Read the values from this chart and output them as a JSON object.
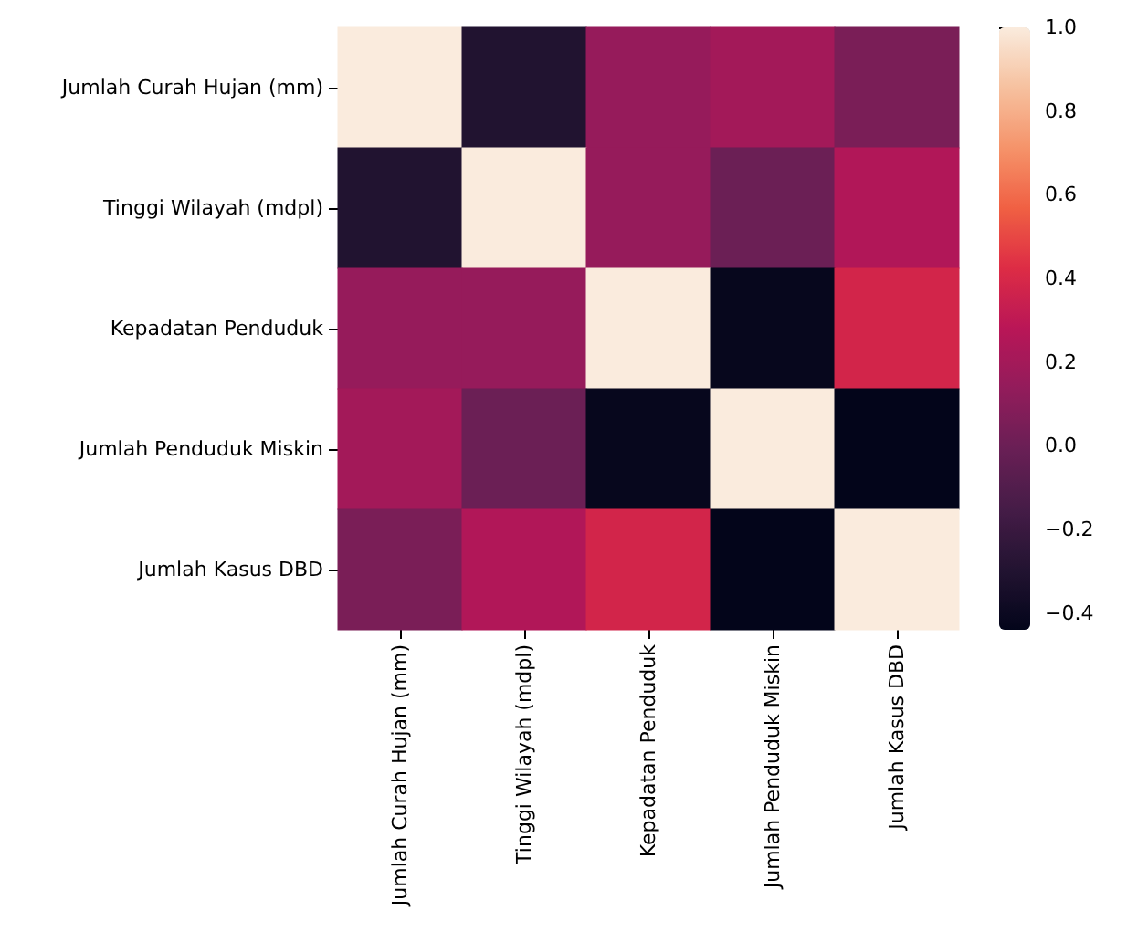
{
  "chart_data": {
    "type": "heatmap",
    "categories": [
      "Jumlah Curah Hujan (mm)",
      "Tinggi Wilayah (mdpl)",
      "Kepadatan Penduduk",
      "Jumlah Penduduk Miskin",
      "Jumlah Kasus DBD"
    ],
    "y_categories": [
      "Jumlah Curah Hujan (mm)",
      "Tinggi Wilayah (mdpl)",
      "Kepadatan Penduduk",
      "Jumlah Penduduk Miskin",
      "Jumlah Kasus DBD"
    ],
    "cells": [
      [
        1.0,
        -0.3,
        0.15,
        0.2,
        0.05
      ],
      [
        -0.3,
        1.0,
        0.15,
        0.0,
        0.25
      ],
      [
        0.15,
        0.15,
        1.0,
        -0.42,
        0.38
      ],
      [
        0.2,
        0.0,
        -0.42,
        1.0,
        -0.44
      ],
      [
        0.05,
        0.25,
        0.38,
        -0.44,
        1.0
      ]
    ],
    "clim": [
      -0.44,
      1.0
    ],
    "cticks": [
      {
        "value": -0.4,
        "label": "−0.4"
      },
      {
        "value": -0.2,
        "label": "−0.2"
      },
      {
        "value": 0.0,
        "label": "0.0"
      },
      {
        "value": 0.2,
        "label": "0.2"
      },
      {
        "value": 0.4,
        "label": "0.4"
      },
      {
        "value": 0.6,
        "label": "0.6"
      },
      {
        "value": 0.8,
        "label": "0.8"
      },
      {
        "value": 1.0,
        "label": "1.0"
      }
    ]
  }
}
